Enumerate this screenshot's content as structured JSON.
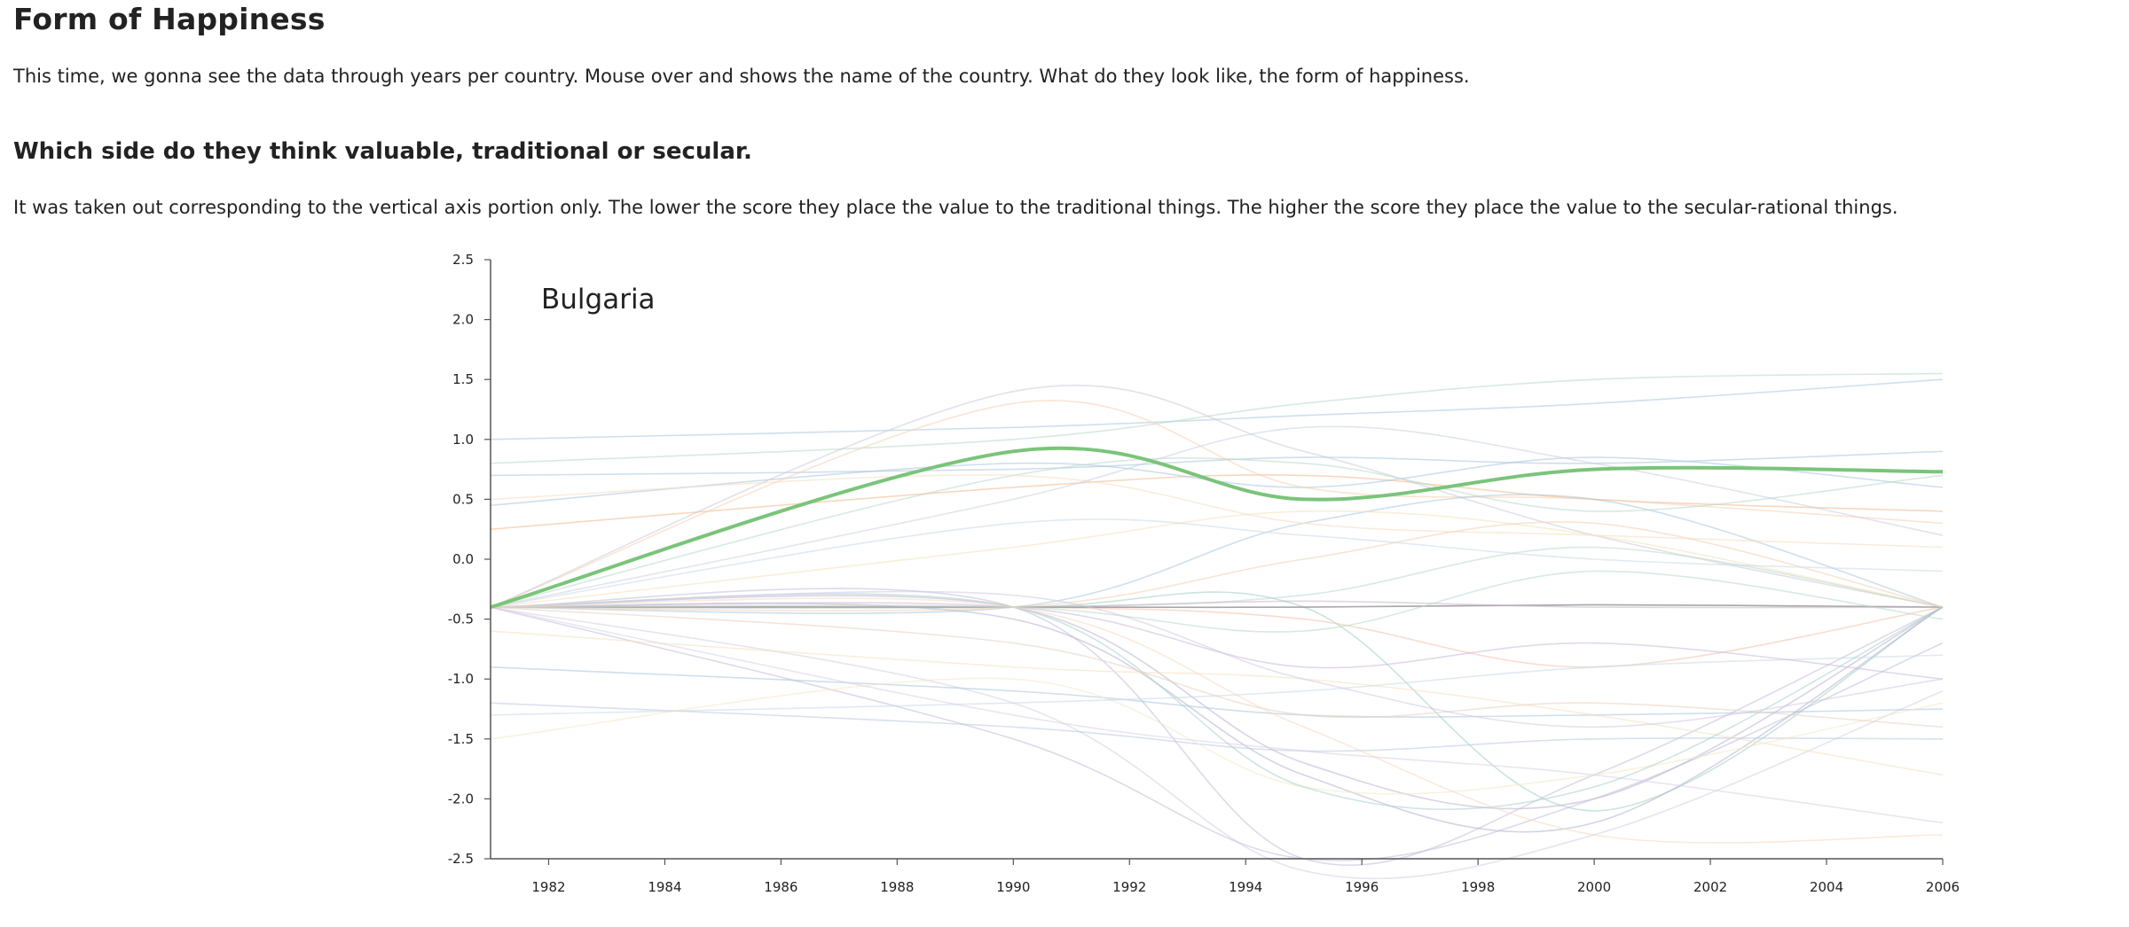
{
  "header": {
    "title": "Form of Happiness",
    "intro": "This time, we gonna see the data through years per country. Mouse over and shows the name of the country. What do they look like, the form of happiness."
  },
  "section": {
    "heading": "Which side do they think valuable, traditional or secular.",
    "description": "It was taken out corresponding to the vertical axis portion only. The lower the score they place the value to the traditional things. The higher the score they place the value to the secular-rational things."
  },
  "chart_data": {
    "type": "line",
    "highlighted_country": "Bulgaria",
    "xlim": [
      1981,
      2006
    ],
    "ylim": [
      -2.5,
      2.5
    ],
    "x_ticks": [
      "1982",
      "1984",
      "1986",
      "1988",
      "1990",
      "1992",
      "1994",
      "1996",
      "1998",
      "2000",
      "2002",
      "2004",
      "2006"
    ],
    "y_ticks": [
      "2.5",
      "2.0",
      "1.5",
      "1.0",
      "0.5",
      "0.0",
      "-0.5",
      "-1.0",
      "-1.5",
      "-2.0",
      "-2.5"
    ],
    "x": [
      1981,
      1990,
      1995,
      2000,
      2006
    ],
    "highlight": {
      "name": "Bulgaria",
      "color": "#7ac47a",
      "values": [
        -0.4,
        0.9,
        0.5,
        0.75,
        0.73
      ]
    },
    "series": [
      {
        "color": "#a8c4dc",
        "values": [
          1.0,
          1.1,
          1.2,
          1.3,
          1.5
        ]
      },
      {
        "color": "#b8d8c8",
        "values": [
          0.8,
          1.0,
          1.3,
          1.5,
          1.55
        ]
      },
      {
        "color": "#a8c4dc",
        "values": [
          0.7,
          0.75,
          0.85,
          0.8,
          0.9
        ]
      },
      {
        "color": "#f2b88a",
        "values": [
          0.25,
          0.6,
          0.7,
          0.5,
          0.4
        ]
      },
      {
        "color": "#a8c4dc",
        "values": [
          0.45,
          0.8,
          0.6,
          0.85,
          0.6
        ]
      },
      {
        "color": "#f5d0b0",
        "values": [
          -0.4,
          1.3,
          0.6,
          0.5,
          0.3
        ]
      },
      {
        "color": "#c8c8d8",
        "values": [
          -0.4,
          1.4,
          0.9,
          0.2,
          -0.4
        ]
      },
      {
        "color": "#b8b0d0",
        "values": [
          -0.4,
          -0.4,
          -1.7,
          -2.0,
          -0.4
        ]
      },
      {
        "color": "#9fcfc0",
        "values": [
          -0.4,
          -0.4,
          -0.4,
          -2.1,
          -0.4
        ]
      },
      {
        "color": "#c0bcd8",
        "values": [
          -0.4,
          -0.4,
          -2.5,
          -1.8,
          -0.4
        ]
      },
      {
        "color": "#f0c0a8",
        "values": [
          -0.4,
          -0.4,
          -0.5,
          -0.9,
          -0.4
        ]
      },
      {
        "color": "#a8c4dc",
        "values": [
          -0.4,
          -0.4,
          0.3,
          0.5,
          -0.4
        ]
      },
      {
        "color": "#b8d8c8",
        "values": [
          -0.4,
          -0.4,
          -0.3,
          0.1,
          -0.4
        ]
      },
      {
        "color": "#888888",
        "values": [
          -0.4,
          -0.4,
          -0.4,
          -0.38,
          -0.4
        ]
      },
      {
        "color": "#c8b0c8",
        "values": [
          -0.4,
          -0.4,
          -0.35,
          -0.4,
          -0.4
        ]
      },
      {
        "color": "#b0b0d0",
        "values": [
          -0.4,
          -0.5,
          -1.8,
          -2.2,
          -0.4
        ]
      },
      {
        "color": "#f5e0b8",
        "values": [
          -0.4,
          0.1,
          0.4,
          0.2,
          -0.4
        ]
      },
      {
        "color": "#d0d0e0",
        "values": [
          -0.4,
          -1.2,
          -2.6,
          -2.3,
          -1.1
        ]
      },
      {
        "color": "#a8c4dc",
        "values": [
          -0.9,
          -1.1,
          -1.3,
          -1.3,
          -1.25
        ]
      },
      {
        "color": "#b8c8e0",
        "values": [
          -1.2,
          -1.4,
          -1.6,
          -1.5,
          -1.5
        ]
      },
      {
        "color": "#c0bcd8",
        "values": [
          -0.4,
          -1.5,
          -2.5,
          -2.0,
          -0.7
        ]
      },
      {
        "color": "#f5e0c0",
        "values": [
          -0.6,
          -0.9,
          -1.0,
          -1.3,
          -1.8
        ]
      },
      {
        "color": "#f5e8c8",
        "values": [
          -1.5,
          -1.0,
          -1.9,
          -1.8,
          -1.2
        ]
      },
      {
        "color": "#c8d8e8",
        "values": [
          -1.3,
          -1.2,
          -1.1,
          -0.9,
          -0.8
        ]
      },
      {
        "color": "#d8d0e8",
        "values": [
          -0.4,
          -1.3,
          -1.6,
          -1.8,
          -2.2
        ]
      },
      {
        "color": "#a8d0c8",
        "values": [
          -0.4,
          -0.4,
          -1.9,
          -1.9,
          -0.4
        ]
      },
      {
        "color": "#c8b8d8",
        "values": [
          -0.4,
          -0.4,
          -0.9,
          -0.7,
          -1.0
        ]
      },
      {
        "color": "#f0d0b0",
        "values": [
          -0.4,
          -0.4,
          0.0,
          0.3,
          -0.4
        ]
      },
      {
        "color": "#b8d8c8",
        "values": [
          -0.4,
          0.7,
          0.8,
          0.4,
          0.7
        ]
      },
      {
        "color": "#f5dcc0",
        "values": [
          0.5,
          0.7,
          0.3,
          0.2,
          0.1
        ]
      },
      {
        "color": "#c8d0e0",
        "values": [
          -0.4,
          0.5,
          1.1,
          0.8,
          0.2
        ]
      },
      {
        "color": "#e8d0c0",
        "values": [
          -0.4,
          -0.7,
          -1.3,
          -1.2,
          -1.4
        ]
      },
      {
        "color": "#d0c8e0",
        "values": [
          -0.4,
          -0.3,
          -1.0,
          -1.4,
          -1.0
        ]
      },
      {
        "color": "#b8d8c8",
        "values": [
          -0.4,
          -0.4,
          -0.6,
          -0.1,
          -0.5
        ]
      },
      {
        "color": "#f5d8c0",
        "values": [
          -0.4,
          -0.4,
          -1.4,
          -2.3,
          -2.3
        ]
      },
      {
        "color": "#c8d8e8",
        "values": [
          -0.4,
          0.3,
          0.2,
          0.0,
          -0.1
        ]
      }
    ]
  }
}
